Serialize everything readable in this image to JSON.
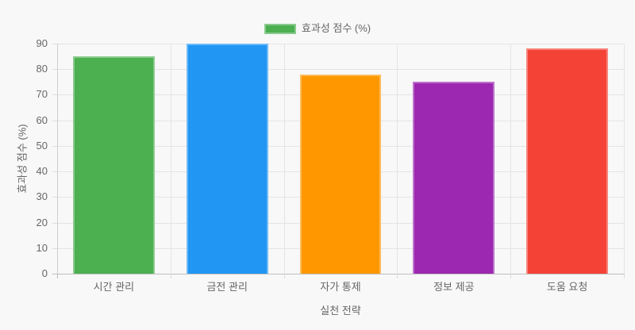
{
  "page": {
    "background_color": "#f8f8f8"
  },
  "legend": {
    "label": "효과성 점수 (%)",
    "swatch_color": "#4caf50",
    "position": "top"
  },
  "chart_data": {
    "type": "bar",
    "title": "",
    "categories": [
      "시간 관리",
      "금전 관리",
      "자가 통제",
      "정보 제공",
      "도움 요청"
    ],
    "values": [
      85,
      90,
      78,
      75,
      88
    ],
    "bar_colors": [
      "#4caf50",
      "#2196f3",
      "#ff9800",
      "#9c27b0",
      "#f44336"
    ],
    "series_name": "효과성 점수 (%)",
    "xlabel": "실천 전략",
    "ylabel": "효과성 점수 (%)",
    "ylim": [
      0,
      90
    ],
    "yticks": [
      0,
      10,
      20,
      30,
      40,
      50,
      60,
      70,
      80,
      90
    ],
    "grid": true,
    "legend_position": "top",
    "style": {
      "grid_color": "#e4e4e4",
      "axis_color": "#bfbfbf",
      "tick_text_color": "#666666",
      "axis_title_color": "#666666"
    }
  }
}
